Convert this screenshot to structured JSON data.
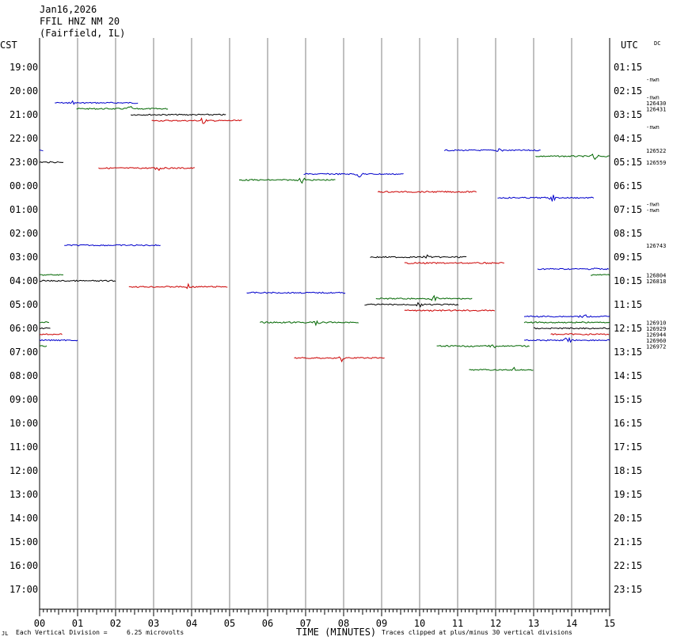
{
  "header": {
    "date": "Jan16,2026",
    "station": "FFIL HNZ NM 20",
    "location": "(Fairfield, IL)"
  },
  "left_axis_title": "CST",
  "right_axis_title": "UTC",
  "dc_label": "DC",
  "footer": {
    "vertical_division": "Each Vertical Division =",
    "microvolts": "6.25 microvolts",
    "time_label": "TIME (MINUTES)",
    "clip_note": "Traces clipped at plus/minus 30 vertical divisions",
    "corner_mark": "JL"
  },
  "chart_data": {
    "type": "line",
    "title": "FFIL HNZ NM 20",
    "xlabel": "TIME (MINUTES)",
    "xlim": [
      0,
      15
    ],
    "x_ticks": [
      "00",
      "01",
      "02",
      "03",
      "04",
      "05",
      "06",
      "07",
      "08",
      "09",
      "10",
      "11",
      "12",
      "13",
      "14",
      "15"
    ],
    "y_left_ticks": [
      "19:00",
      "20:00",
      "21:00",
      "22:00",
      "23:00",
      "00:00",
      "01:00",
      "02:00",
      "03:00",
      "04:00",
      "05:00",
      "06:00",
      "07:00",
      "08:00",
      "09:00",
      "10:00",
      "11:00",
      "12:00",
      "13:00",
      "14:00",
      "15:00",
      "16:00",
      "17:00"
    ],
    "y_right_ticks": [
      "01:15",
      "02:15",
      "03:15",
      "04:15",
      "05:15",
      "06:15",
      "07:15",
      "08:15",
      "09:15",
      "10:15",
      "11:15",
      "12:15",
      "13:15",
      "14:15",
      "15:15",
      "16:15",
      "17:15",
      "18:15",
      "19:15",
      "20:15",
      "21:15",
      "22:15",
      "23:15"
    ],
    "grid": true,
    "right_annotations": [
      {
        "row": 0.5,
        "text": "-nwn"
      },
      {
        "row": 1.25,
        "text": "-nwn"
      },
      {
        "row": 1.5,
        "text": "126430"
      },
      {
        "row": 1.75,
        "text": "126431"
      },
      {
        "row": 2.5,
        "text": "-nwn"
      },
      {
        "row": 3.5,
        "text": "126522"
      },
      {
        "row": 4.0,
        "text": "126559"
      },
      {
        "row": 5.75,
        "text": "-nwn"
      },
      {
        "row": 6.0,
        "text": "-nwn"
      },
      {
        "row": 7.5,
        "text": "126743"
      },
      {
        "row": 8.75,
        "text": "126804"
      },
      {
        "row": 9.0,
        "text": "126818"
      },
      {
        "row": 10.75,
        "text": "126910"
      },
      {
        "row": 11.0,
        "text": "126929"
      },
      {
        "row": 11.25,
        "text": "126944"
      },
      {
        "row": 11.5,
        "text": "126960"
      },
      {
        "row": 11.75,
        "text": "126972"
      }
    ],
    "series": [
      {
        "row": 1.5,
        "x0": 0.4,
        "x1": 2.6,
        "color": "#0000cc",
        "spikes": [
          0.85
        ]
      },
      {
        "row": 1.75,
        "x0": 0.97,
        "x1": 3.4,
        "color": "#006600",
        "spikes": [
          2.35
        ]
      },
      {
        "row": 2.0,
        "x0": 2.4,
        "x1": 4.9,
        "color": "#000000",
        "spikes": []
      },
      {
        "row": 2.25,
        "x0": 2.95,
        "x1": 5.35,
        "color": "#cc0000",
        "spikes": [
          4.3
        ]
      },
      {
        "row": 3.5,
        "x0": 0.0,
        "x1": 0.1,
        "color": "#0000cc",
        "spikes": []
      },
      {
        "row": 3.5,
        "x0": 10.65,
        "x1": 13.2,
        "color": "#0000cc",
        "spikes": [
          12.1
        ]
      },
      {
        "row": 3.75,
        "x0": 13.05,
        "x1": 15.0,
        "color": "#006600",
        "spikes": [
          14.6
        ]
      },
      {
        "row": 4.0,
        "x0": 0.0,
        "x1": 0.65,
        "color": "#000000",
        "spikes": []
      },
      {
        "row": 4.25,
        "x0": 1.55,
        "x1": 4.1,
        "color": "#cc0000",
        "spikes": [
          3.1
        ]
      },
      {
        "row": 4.5,
        "x0": 6.95,
        "x1": 9.6,
        "color": "#0000cc",
        "spikes": [
          8.4
        ]
      },
      {
        "row": 4.75,
        "x0": 5.25,
        "x1": 7.8,
        "color": "#006600",
        "spikes": [
          6.9
        ]
      },
      {
        "row": 5.25,
        "x0": 8.9,
        "x1": 11.5,
        "color": "#cc0000",
        "spikes": []
      },
      {
        "row": 5.5,
        "x0": 12.05,
        "x1": 14.6,
        "color": "#0000cc",
        "spikes": [
          13.5
        ]
      },
      {
        "row": 7.5,
        "x0": 0.65,
        "x1": 3.2,
        "color": "#0000cc",
        "spikes": []
      },
      {
        "row": 8.0,
        "x0": 8.7,
        "x1": 11.25,
        "color": "#000000",
        "spikes": [
          10.2
        ]
      },
      {
        "row": 8.25,
        "x0": 9.6,
        "x1": 12.25,
        "color": "#cc0000",
        "spikes": []
      },
      {
        "row": 8.75,
        "x0": 0.0,
        "x1": 0.65,
        "color": "#006600",
        "spikes": []
      },
      {
        "row": 8.5,
        "x0": 13.1,
        "x1": 15.0,
        "color": "#0000cc",
        "spikes": [
          14.6
        ]
      },
      {
        "row": 8.75,
        "x0": 14.5,
        "x1": 15.0,
        "color": "#006600",
        "spikes": []
      },
      {
        "row": 9.0,
        "x0": 0.0,
        "x1": 2.0,
        "color": "#000000",
        "spikes": []
      },
      {
        "row": 9.25,
        "x0": 2.35,
        "x1": 4.95,
        "color": "#cc0000",
        "spikes": [
          3.9
        ]
      },
      {
        "row": 9.5,
        "x0": 5.45,
        "x1": 8.05,
        "color": "#0000cc",
        "spikes": []
      },
      {
        "row": 9.75,
        "x0": 8.85,
        "x1": 11.4,
        "color": "#006600",
        "spikes": [
          10.4
        ]
      },
      {
        "row": 10.0,
        "x0": 8.55,
        "x1": 11.05,
        "color": "#000000",
        "spikes": [
          10.0
        ]
      },
      {
        "row": 10.25,
        "x0": 9.6,
        "x1": 12.0,
        "color": "#cc0000",
        "spikes": []
      },
      {
        "row": 10.5,
        "x0": 12.75,
        "x1": 15.0,
        "color": "#0000cc",
        "spikes": [
          14.3
        ]
      },
      {
        "row": 10.75,
        "x0": 5.8,
        "x1": 8.4,
        "color": "#006600",
        "spikes": [
          7.3
        ]
      },
      {
        "row": 10.75,
        "x0": 12.75,
        "x1": 15.0,
        "color": "#006600",
        "spikes": []
      },
      {
        "row": 11.0,
        "x0": 13.0,
        "x1": 15.0,
        "color": "#000000",
        "spikes": []
      },
      {
        "row": 11.25,
        "x0": 13.45,
        "x1": 15.0,
        "color": "#cc0000",
        "spikes": []
      },
      {
        "row": 11.5,
        "x0": 12.75,
        "x1": 15.0,
        "color": "#0000cc",
        "spikes": [
          13.9
        ]
      },
      {
        "row": 10.75,
        "x0": 0.0,
        "x1": 0.25,
        "color": "#006600",
        "spikes": []
      },
      {
        "row": 11.0,
        "x0": 0.0,
        "x1": 0.3,
        "color": "#000000",
        "spikes": []
      },
      {
        "row": 11.25,
        "x0": 0.0,
        "x1": 0.6,
        "color": "#cc0000",
        "spikes": []
      },
      {
        "row": 11.5,
        "x0": 0.0,
        "x1": 1.0,
        "color": "#0000cc",
        "spikes": []
      },
      {
        "row": 11.75,
        "x0": 0.0,
        "x1": 0.2,
        "color": "#006600",
        "spikes": []
      },
      {
        "row": 11.75,
        "x0": 10.45,
        "x1": 12.9,
        "color": "#006600",
        "spikes": [
          11.9
        ]
      },
      {
        "row": 12.25,
        "x0": 6.7,
        "x1": 9.1,
        "color": "#cc0000",
        "spikes": [
          7.95
        ]
      },
      {
        "row": 12.75,
        "x0": 11.3,
        "x1": 13.0,
        "color": "#006600",
        "spikes": [
          12.5
        ]
      }
    ]
  }
}
